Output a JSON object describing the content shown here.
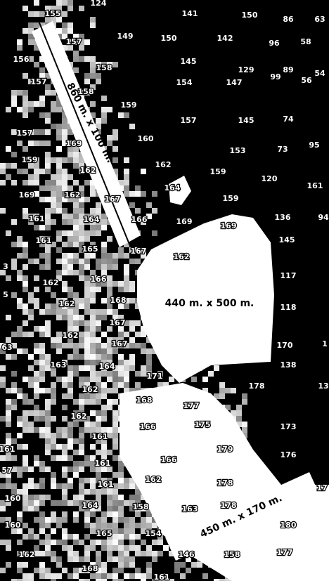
{
  "soundings": [
    124,
    155,
    141,
    150,
    86,
    63,
    157,
    149,
    150,
    142,
    96,
    58,
    156,
    145,
    158,
    129,
    89,
    54,
    154,
    157,
    158,
    147,
    99,
    56,
    159,
    157,
    145,
    74,
    157,
    160,
    169,
    153,
    73,
    95,
    159,
    162,
    162,
    159,
    120,
    164,
    161,
    169,
    162,
    167,
    159,
    161,
    164,
    166,
    169,
    169,
    136,
    94,
    161,
    165,
    167,
    162,
    145,
    3,
    162,
    166,
    117,
    5,
    162,
    168,
    118,
    167,
    162,
    167,
    63,
    170,
    1,
    163,
    164,
    138,
    171,
    162,
    168,
    178,
    13,
    162,
    177,
    166,
    175,
    173,
    161,
    161,
    179,
    176,
    57,
    161,
    166,
    162,
    178,
    161,
    160,
    164,
    158,
    163,
    178,
    17,
    160,
    165,
    154,
    146,
    158,
    180,
    162,
    177,
    168,
    161
  ],
  "labels": [
    "860 m. x 100 m.",
    "440 m. x 500 m.",
    "450 m. x 170 m."
  ]
}
